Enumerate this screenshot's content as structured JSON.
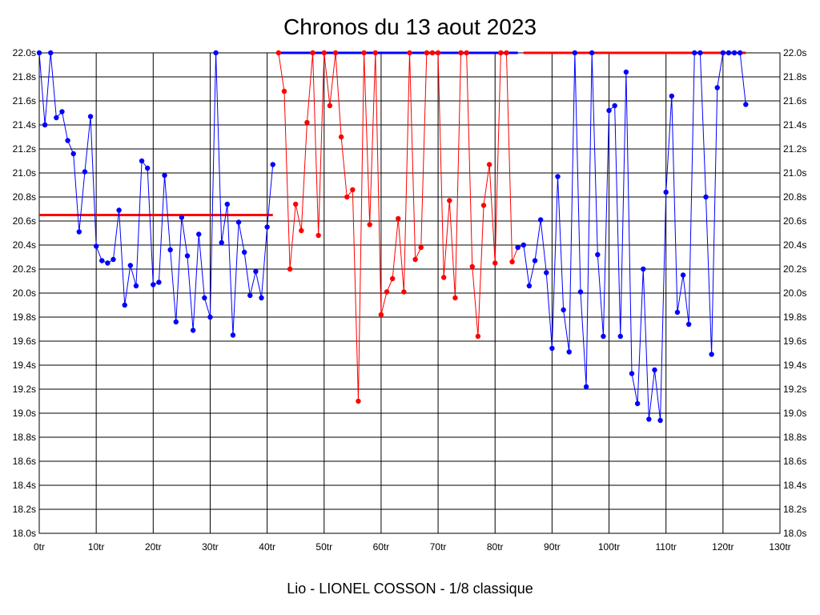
{
  "chart_data": {
    "type": "line",
    "title": "Chronos du 13 aout 2023",
    "subtitle": "Lio - LIONEL COSSON - 1/8 classique",
    "xlim": [
      0,
      130
    ],
    "ylim": [
      18.0,
      22.0
    ],
    "x_ticks": [
      "0tr",
      "10tr",
      "20tr",
      "30tr",
      "40tr",
      "50tr",
      "60tr",
      "70tr",
      "80tr",
      "90tr",
      "100tr",
      "110tr",
      "120tr",
      "130tr"
    ],
    "y_ticks": [
      "18.0s",
      "18.2s",
      "18.4s",
      "18.6s",
      "18.8s",
      "19.0s",
      "19.2s",
      "19.4s",
      "19.6s",
      "19.8s",
      "20.0s",
      "20.2s",
      "20.4s",
      "20.6s",
      "20.8s",
      "21.0s",
      "21.2s",
      "21.4s",
      "21.6s",
      "21.8s",
      "22.0s"
    ],
    "grid": true,
    "colors": {
      "blue": "#0000ff",
      "red": "#ff0000"
    },
    "series": [
      {
        "color": "blue",
        "x": [
          0,
          1,
          2,
          3,
          4,
          5,
          6,
          7,
          8,
          9,
          10,
          11,
          12,
          13,
          14,
          15,
          16,
          17,
          18,
          19,
          20,
          21,
          22,
          23,
          24,
          25,
          26,
          27,
          28,
          29,
          30,
          31,
          32,
          33,
          34,
          35,
          36,
          37,
          38,
          39,
          40,
          41
        ],
        "y": [
          22.0,
          21.4,
          22.0,
          21.46,
          21.51,
          21.27,
          21.16,
          20.51,
          21.01,
          21.47,
          20.39,
          20.27,
          20.25,
          20.28,
          20.69,
          19.9,
          20.23,
          20.06,
          21.1,
          21.04,
          20.07,
          20.09,
          20.98,
          20.36,
          19.76,
          20.63,
          20.31,
          19.69,
          20.49,
          19.96,
          19.8,
          22.0,
          20.42,
          20.74,
          19.65,
          20.59,
          20.34,
          19.98,
          20.18,
          19.96,
          20.55,
          21.07
        ]
      },
      {
        "color": "red",
        "x": [
          42,
          43,
          44,
          45,
          46,
          47,
          48,
          49,
          50,
          51,
          52,
          53,
          54,
          55,
          56,
          57,
          58,
          59,
          60,
          61,
          62,
          63,
          64,
          65,
          66,
          67,
          68,
          69,
          70,
          71,
          72,
          73,
          74,
          75,
          76,
          77,
          78,
          79,
          80,
          81,
          82,
          83,
          84
        ],
        "y": [
          22.0,
          21.68,
          20.2,
          20.74,
          20.52,
          21.42,
          22.0,
          20.48,
          22.0,
          21.56,
          22.0,
          21.3,
          20.8,
          20.86,
          19.1,
          22.0,
          20.57,
          22.0,
          19.82,
          20.01,
          20.12,
          20.62,
          20.01,
          22.0,
          20.28,
          20.38,
          22.0,
          22.0,
          22.0,
          20.13,
          20.77,
          19.96,
          22.0,
          22.0,
          20.22,
          19.64,
          20.73,
          21.07,
          20.25,
          22.0,
          22.0,
          20.26,
          20.38
        ]
      },
      {
        "color": "blue",
        "x": [
          84,
          85,
          86,
          87,
          88,
          89,
          90,
          91,
          92,
          93,
          94,
          95,
          96,
          97,
          98,
          99,
          100,
          101,
          102,
          103,
          104,
          105,
          106,
          107,
          108,
          109,
          110,
          111,
          112,
          113,
          114,
          115,
          116,
          117,
          118,
          119,
          120,
          121,
          122,
          123,
          124
        ],
        "y": [
          20.38,
          20.4,
          20.06,
          20.27,
          20.61,
          20.17,
          19.54,
          20.97,
          19.86,
          19.51,
          22.0,
          20.01,
          19.22,
          22.0,
          20.32,
          19.64,
          21.52,
          21.56,
          19.64,
          21.84,
          19.33,
          19.08,
          20.2,
          18.95,
          19.36,
          18.94,
          20.84,
          21.64,
          19.84,
          20.15,
          19.74,
          22.0,
          22.0,
          20.8,
          19.49,
          21.71,
          22.0,
          22.0,
          22.0,
          22.0,
          21.57
        ]
      }
    ],
    "reference_lines": [
      {
        "color": "red",
        "x": [
          0,
          41
        ],
        "y": 20.65
      },
      {
        "color": "blue",
        "x": [
          42,
          84
        ],
        "y": 22.0
      },
      {
        "color": "red",
        "x": [
          85,
          124
        ],
        "y": 22.0
      }
    ]
  }
}
